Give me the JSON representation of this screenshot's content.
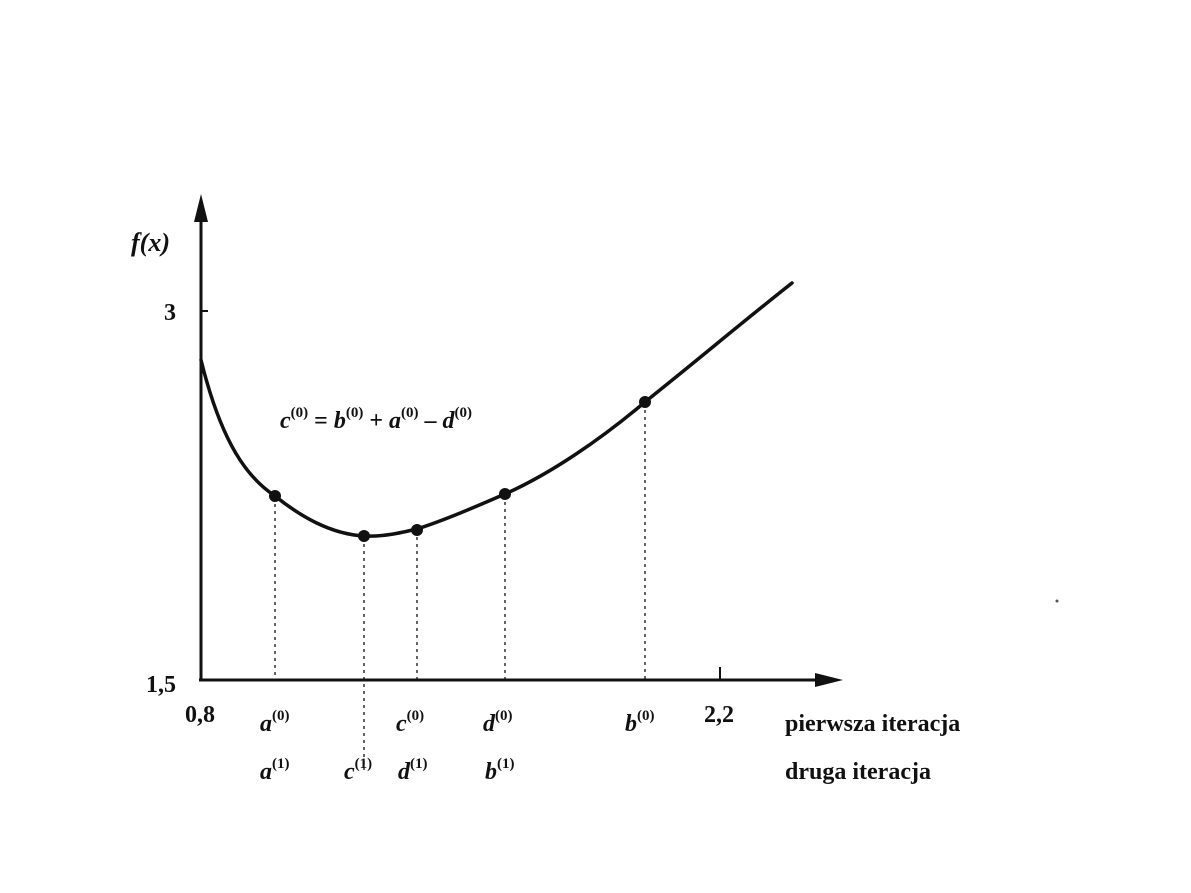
{
  "diagram": {
    "y_axis_label": "f(x)",
    "y_ticks": [
      "3",
      "1,5"
    ],
    "x_ticks": [
      "0,8",
      "2,2"
    ],
    "formula": {
      "c": "c",
      "sup0a": "(0)",
      "eq": " = ",
      "b": "b",
      "sup0b": "(0)",
      "plus": " + ",
      "a": "a",
      "sup0c": "(0)",
      "minus": " – ",
      "d": "d",
      "sup0d": "(0)"
    },
    "first_iteration": {
      "label": "pierwsza iteracja",
      "points": [
        {
          "letter": "a",
          "sup": "(0)"
        },
        {
          "letter": "c",
          "sup": "(0)"
        },
        {
          "letter": "d",
          "sup": "(0)"
        },
        {
          "letter": "b",
          "sup": "(0)"
        }
      ]
    },
    "second_iteration": {
      "label": "druga iteracja",
      "points": [
        {
          "letter": "a",
          "sup": "(1)"
        },
        {
          "letter": "c",
          "sup": "(1)"
        },
        {
          "letter": "d",
          "sup": "(1)"
        },
        {
          "letter": "b",
          "sup": "(1)"
        }
      ]
    },
    "colors": {
      "ink": "#111111",
      "background": "#ffffff"
    }
  }
}
